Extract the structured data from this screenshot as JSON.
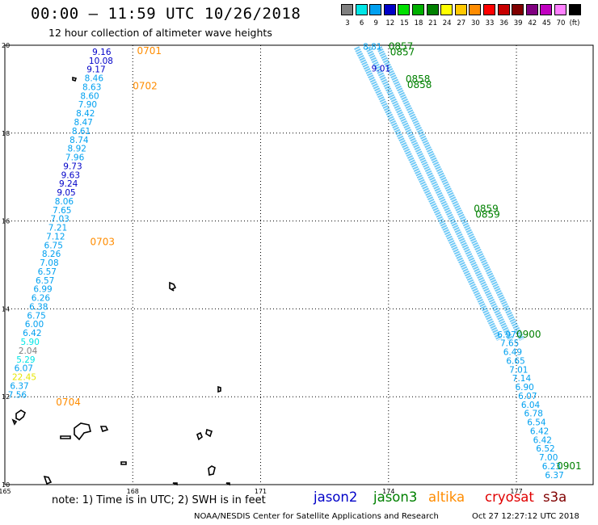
{
  "header": {
    "title": "00:00 – 11:59 UTC 10/26/2018",
    "subtitle": "12 hour collection of altimeter wave heights"
  },
  "colorbar": {
    "unit": "(ft)",
    "bins": [
      {
        "label": "3",
        "color": "#808080"
      },
      {
        "label": "6",
        "color": "#00e6e6"
      },
      {
        "label": "9",
        "color": "#00a0f0"
      },
      {
        "label": "12",
        "color": "#0000c8"
      },
      {
        "label": "15",
        "color": "#00e000"
      },
      {
        "label": "18",
        "color": "#00b000"
      },
      {
        "label": "21",
        "color": "#008000"
      },
      {
        "label": "24",
        "color": "#ffff00"
      },
      {
        "label": "27",
        "color": "#ffc800"
      },
      {
        "label": "30",
        "color": "#ff8c00"
      },
      {
        "label": "33",
        "color": "#ff0000"
      },
      {
        "label": "36",
        "color": "#c80000"
      },
      {
        "label": "39",
        "color": "#800000"
      },
      {
        "label": "42",
        "color": "#800080"
      },
      {
        "label": "45",
        "color": "#c000c0"
      },
      {
        "label": "70",
        "color": "#ff80ff"
      },
      {
        "label": "",
        "color": "#000000"
      }
    ]
  },
  "map": {
    "lon_range": [
      165,
      178.8
    ],
    "lat_range": [
      10,
      20
    ],
    "lon_ticks": [
      "165",
      "168",
      "171",
      "174",
      "177"
    ],
    "lat_ticks": [
      "20",
      "18",
      "16",
      "14",
      "12",
      "10"
    ]
  },
  "tracks": [
    {
      "id": "west-track",
      "time_labels": [
        {
          "text": "0701",
          "lon": 168.1,
          "lat": 19.8
        },
        {
          "text": "0702",
          "lon": 168.0,
          "lat": 19.0
        },
        {
          "text": "0703",
          "lon": 167.0,
          "lat": 15.45
        },
        {
          "text": "0704",
          "lon": 166.2,
          "lat": 11.8
        }
      ],
      "labels": [
        {
          "text": "9.16",
          "color": "#0000c8",
          "lon": 167.05,
          "lat": 19.78
        },
        {
          "text": "10.08",
          "color": "#0000c8",
          "lon": 166.97,
          "lat": 19.58
        },
        {
          "text": "9.17",
          "color": "#0000c8",
          "lon": 166.92,
          "lat": 19.38
        },
        {
          "text": "8.46",
          "color": "#00a0f0",
          "lon": 166.87,
          "lat": 19.18
        },
        {
          "text": "8.63",
          "color": "#00a0f0",
          "lon": 166.82,
          "lat": 18.98
        },
        {
          "text": "8.60",
          "color": "#00a0f0",
          "lon": 166.77,
          "lat": 18.78
        },
        {
          "text": "7.90",
          "color": "#00a0f0",
          "lon": 166.72,
          "lat": 18.58
        },
        {
          "text": "8.42",
          "color": "#00a0f0",
          "lon": 166.67,
          "lat": 18.38
        },
        {
          "text": "8.47",
          "color": "#00a0f0",
          "lon": 166.62,
          "lat": 18.18
        },
        {
          "text": "8.61",
          "color": "#00a0f0",
          "lon": 166.57,
          "lat": 17.98
        },
        {
          "text": "8.74",
          "color": "#00a0f0",
          "lon": 166.52,
          "lat": 17.78
        },
        {
          "text": "8.92",
          "color": "#00a0f0",
          "lon": 166.47,
          "lat": 17.58
        },
        {
          "text": "7.96",
          "color": "#00a0f0",
          "lon": 166.42,
          "lat": 17.38
        },
        {
          "text": "9.73",
          "color": "#0000c8",
          "lon": 166.37,
          "lat": 17.18
        },
        {
          "text": "9.63",
          "color": "#0000c8",
          "lon": 166.32,
          "lat": 16.98
        },
        {
          "text": "9.24",
          "color": "#0000c8",
          "lon": 166.27,
          "lat": 16.78
        },
        {
          "text": "9.05",
          "color": "#0000c8",
          "lon": 166.22,
          "lat": 16.58
        },
        {
          "text": "8.06",
          "color": "#00a0f0",
          "lon": 166.17,
          "lat": 16.38
        },
        {
          "text": "7.65",
          "color": "#00a0f0",
          "lon": 166.12,
          "lat": 16.18
        },
        {
          "text": "7.03",
          "color": "#00a0f0",
          "lon": 166.07,
          "lat": 15.98
        },
        {
          "text": "7.21",
          "color": "#00a0f0",
          "lon": 166.02,
          "lat": 15.78
        },
        {
          "text": "7.12",
          "color": "#00a0f0",
          "lon": 165.97,
          "lat": 15.58
        },
        {
          "text": "6.75",
          "color": "#00a0f0",
          "lon": 165.92,
          "lat": 15.38
        },
        {
          "text": "8.26",
          "color": "#00a0f0",
          "lon": 165.87,
          "lat": 15.18
        },
        {
          "text": "7.08",
          "color": "#00a0f0",
          "lon": 165.82,
          "lat": 14.98
        },
        {
          "text": "6.57",
          "color": "#00a0f0",
          "lon": 165.77,
          "lat": 14.78
        },
        {
          "text": "6.57",
          "color": "#00a0f0",
          "lon": 165.72,
          "lat": 14.58
        },
        {
          "text": "6.99",
          "color": "#00a0f0",
          "lon": 165.67,
          "lat": 14.38
        },
        {
          "text": "6.26",
          "color": "#00a0f0",
          "lon": 165.62,
          "lat": 14.18
        },
        {
          "text": "6.38",
          "color": "#00a0f0",
          "lon": 165.57,
          "lat": 13.98
        },
        {
          "text": "6.75",
          "color": "#00a0f0",
          "lon": 165.52,
          "lat": 13.78
        },
        {
          "text": "6.00",
          "color": "#00a0f0",
          "lon": 165.47,
          "lat": 13.58
        },
        {
          "text": "6.42",
          "color": "#00a0f0",
          "lon": 165.42,
          "lat": 13.38
        },
        {
          "text": "5.90",
          "color": "#00e6e6",
          "lon": 165.37,
          "lat": 13.18
        },
        {
          "text": "2.04",
          "color": "#808080",
          "lon": 165.32,
          "lat": 12.98
        },
        {
          "text": "5.29",
          "color": "#00e6e6",
          "lon": 165.27,
          "lat": 12.78
        },
        {
          "text": "6.07",
          "color": "#00a0f0",
          "lon": 165.22,
          "lat": 12.58
        },
        {
          "text": "22.45",
          "color": "#e6e600",
          "lon": 165.17,
          "lat": 12.38
        },
        {
          "text": "6.37",
          "color": "#00a0f0",
          "lon": 165.12,
          "lat": 12.18
        },
        {
          "text": "7.56",
          "color": "#00a0f0",
          "lon": 165.07,
          "lat": 11.98
        }
      ]
    },
    {
      "id": "east-track",
      "time_labels": [
        {
          "text": "0857",
          "lon": 174.0,
          "lat": 19.9
        },
        {
          "text": "0858",
          "lon": 174.4,
          "lat": 19.15
        },
        {
          "text": "0859",
          "lon": 176.0,
          "lat": 16.2
        },
        {
          "text": "0900",
          "lon": 177.0,
          "lat": 13.35
        },
        {
          "text": "0901",
          "lon": 177.95,
          "lat": 10.35
        }
      ],
      "labels": [
        {
          "text": "8.81",
          "color": "#00a0f0",
          "lon": 173.4,
          "lat": 19.9
        },
        {
          "text": "9.01",
          "color": "#0000c8",
          "lon": 173.6,
          "lat": 19.4
        },
        {
          "text": "6.97",
          "color": "#00a0f0",
          "lon": 176.55,
          "lat": 13.35
        },
        {
          "text": "7.65",
          "color": "#00a0f0",
          "lon": 176.62,
          "lat": 13.15
        },
        {
          "text": "6.49",
          "color": "#00a0f0",
          "lon": 176.69,
          "lat": 12.95
        },
        {
          "text": "6.65",
          "color": "#00a0f0",
          "lon": 176.76,
          "lat": 12.75
        },
        {
          "text": "7.01",
          "color": "#00a0f0",
          "lon": 176.83,
          "lat": 12.55
        },
        {
          "text": "7.14",
          "color": "#00a0f0",
          "lon": 176.9,
          "lat": 12.35
        },
        {
          "text": "6.90",
          "color": "#00a0f0",
          "lon": 176.97,
          "lat": 12.15
        },
        {
          "text": "6.07",
          "color": "#00a0f0",
          "lon": 177.04,
          "lat": 11.95
        },
        {
          "text": "6.04",
          "color": "#00a0f0",
          "lon": 177.11,
          "lat": 11.75
        },
        {
          "text": "6.78",
          "color": "#00a0f0",
          "lon": 177.18,
          "lat": 11.55
        },
        {
          "text": "6.54",
          "color": "#00a0f0",
          "lon": 177.25,
          "lat": 11.35
        },
        {
          "text": "6.42",
          "color": "#00a0f0",
          "lon": 177.32,
          "lat": 11.15
        },
        {
          "text": "6.42",
          "color": "#00a0f0",
          "lon": 177.39,
          "lat": 10.95
        },
        {
          "text": "6.52",
          "color": "#00a0f0",
          "lon": 177.46,
          "lat": 10.75
        },
        {
          "text": "7.00",
          "color": "#00a0f0",
          "lon": 177.53,
          "lat": 10.55
        },
        {
          "text": "6.23",
          "color": "#00a0f0",
          "lon": 177.6,
          "lat": 10.35
        },
        {
          "text": "6.37",
          "color": "#00a0f0",
          "lon": 177.67,
          "lat": 10.15
        }
      ]
    }
  ],
  "footer": {
    "note": "note: 1) Time is in UTC; 2) SWH is in feet",
    "satellites": [
      {
        "name": "jason2",
        "color": "#0000c8"
      },
      {
        "name": "jason3",
        "color": "#008000"
      },
      {
        "name": "altika",
        "color": "#ff8c00"
      },
      {
        "name": "cryosat",
        "color": "#e00000"
      },
      {
        "name": "s3a",
        "color": "#800000"
      }
    ],
    "credit": "NOAA/NESDIS Center for Satellite Applications and Research",
    "timestamp": "Oct 27 12:27:12 UTC 2018"
  }
}
